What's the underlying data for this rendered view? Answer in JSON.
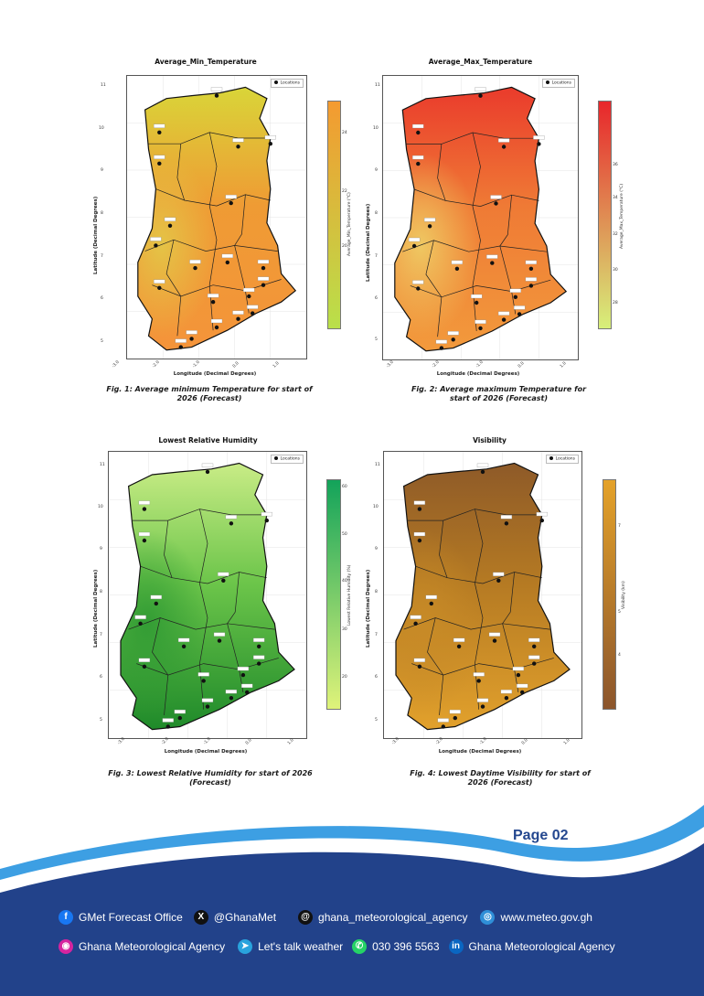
{
  "figures": [
    {
      "title": "Average_Min_Temperature",
      "caption": "Fig. 1:  Average minimum Temperature for start of 2026 (Forecast)",
      "colorbar_label": "Average_Min_Temperature (°C)",
      "colorbar_ticks": [
        "24",
        "22",
        "20"
      ],
      "colors": {
        "north": "#d9d538",
        "center": "#ef9b34",
        "south": "#f4943a",
        "west": "#e3c848"
      },
      "cbar_top": "#f49a30",
      "cbar_bottom": "#b9e04a"
    },
    {
      "title": "Average_Max_Temperature",
      "caption": "Fig. 2: Average maximum Temperature for start of 2026 (Forecast)",
      "colorbar_label": "Average_Max_Temperature (°C)",
      "colorbar_ticks": [
        "36",
        "34",
        "32",
        "30",
        "28"
      ],
      "colors": {
        "north": "#ea3b2c",
        "center": "#ef7a35",
        "south": "#f29a3c",
        "west": "#efd067"
      },
      "cbar_top": "#e8262b",
      "cbar_bottom": "#d7f07a"
    },
    {
      "title": "Lowest Relative Humidity",
      "caption": "Fig. 3: Lowest Relative Humidity for start of 2026 (Forecast)",
      "colorbar_label": "Lowest Relative Humidity (%)",
      "colorbar_ticks": [
        "60",
        "50",
        "40",
        "30",
        "20"
      ],
      "colors": {
        "north": "#c9ec86",
        "center": "#6cc54a",
        "south": "#1f8a2a",
        "west": "#2f9a33"
      },
      "cbar_top": "#13a35a",
      "cbar_bottom": "#dff37a"
    },
    {
      "title": "Visibility",
      "caption": "Fig. 4: Lowest Daytime Visibility for start of 2026 (Forecast)",
      "colorbar_label": "Visibility (km)",
      "colorbar_ticks": [
        "7",
        "5",
        "4"
      ],
      "colors": {
        "north": "#8e5a28",
        "center": "#b57a23",
        "south": "#e2a12c",
        "west": "#c88b27"
      },
      "cbar_top": "#e4a22a",
      "cbar_bottom": "#8b552c"
    }
  ],
  "axis": {
    "xlabel": "Longitude (Decimal Degrees)",
    "ylabel": "Latitude (Decimal Degrees)",
    "xticks": [
      "-3.0",
      "-2.0",
      "-1.0",
      "0.0",
      "1.0"
    ],
    "yticks": [
      "11",
      "10",
      "9",
      "8",
      "7",
      "6",
      "5"
    ],
    "legend_label": "Locations"
  },
  "page": {
    "number": "Page 02"
  },
  "footer": {
    "row1": [
      {
        "icon": "facebook-icon",
        "label": "GMet Forecast Office"
      },
      {
        "icon": "x-icon",
        "label": "@GhanaMet"
      },
      {
        "icon": "threads-icon",
        "label": "ghana_meteorological_agency"
      },
      {
        "icon": "globe-icon",
        "label": "www.meteo.gov.gh"
      }
    ],
    "row2": [
      {
        "icon": "instagram-icon",
        "label": "Ghana Meteorological Agency"
      },
      {
        "icon": "telegram-icon",
        "label": "Let's talk weather"
      },
      {
        "icon": "whatsapp-icon",
        "label": "030 396 5563"
      },
      {
        "icon": "linkedin-icon",
        "label": "Ghana Meteorological Agency"
      }
    ],
    "colors": {
      "navy": "#22428a",
      "wave": "#2f8fd8"
    }
  }
}
